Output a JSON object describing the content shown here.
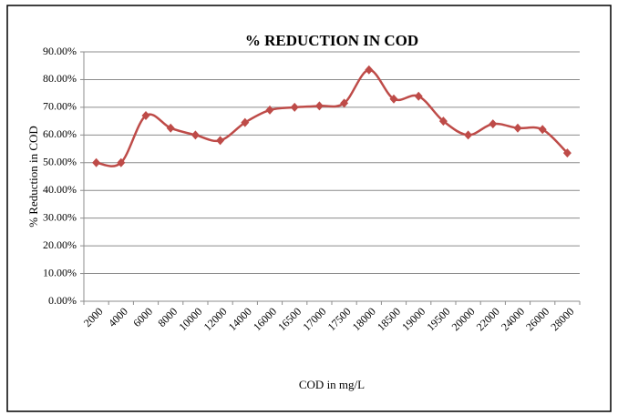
{
  "chart_data": {
    "type": "line",
    "title": "% REDUCTION IN COD",
    "x_label": "COD in mg/L",
    "y_label": "% Reduction in COD",
    "categories": [
      "2000",
      "4000",
      "6000",
      "8000",
      "10000",
      "12000",
      "14000",
      "16000",
      "16500",
      "17000",
      "17500",
      "18000",
      "18500",
      "19000",
      "19500",
      "20000",
      "22000",
      "24000",
      "26000",
      "28000"
    ],
    "series": [
      {
        "color": "#be4b48",
        "values": [
          50,
          50,
          67,
          62.5,
          60,
          58,
          64.5,
          69,
          70,
          70.5,
          71.5,
          83.5,
          73,
          74,
          65,
          60,
          64,
          62.5,
          62,
          53.5
        ]
      }
    ],
    "ylim": [
      0,
      90
    ],
    "yticks": [
      {
        "value": 0,
        "label": "0.00%"
      },
      {
        "value": 10,
        "label": "10.00%"
      },
      {
        "value": 20,
        "label": "20.00%"
      },
      {
        "value": 30,
        "label": "30.00%"
      },
      {
        "value": 40,
        "label": "40.00%"
      },
      {
        "value": 50,
        "label": "50.00%"
      },
      {
        "value": 60,
        "label": "60.00%"
      },
      {
        "value": 70,
        "label": "70.00%"
      },
      {
        "value": 80,
        "label": "80.00%"
      },
      {
        "value": 90,
        "label": "90.00%"
      }
    ],
    "grid": true
  }
}
